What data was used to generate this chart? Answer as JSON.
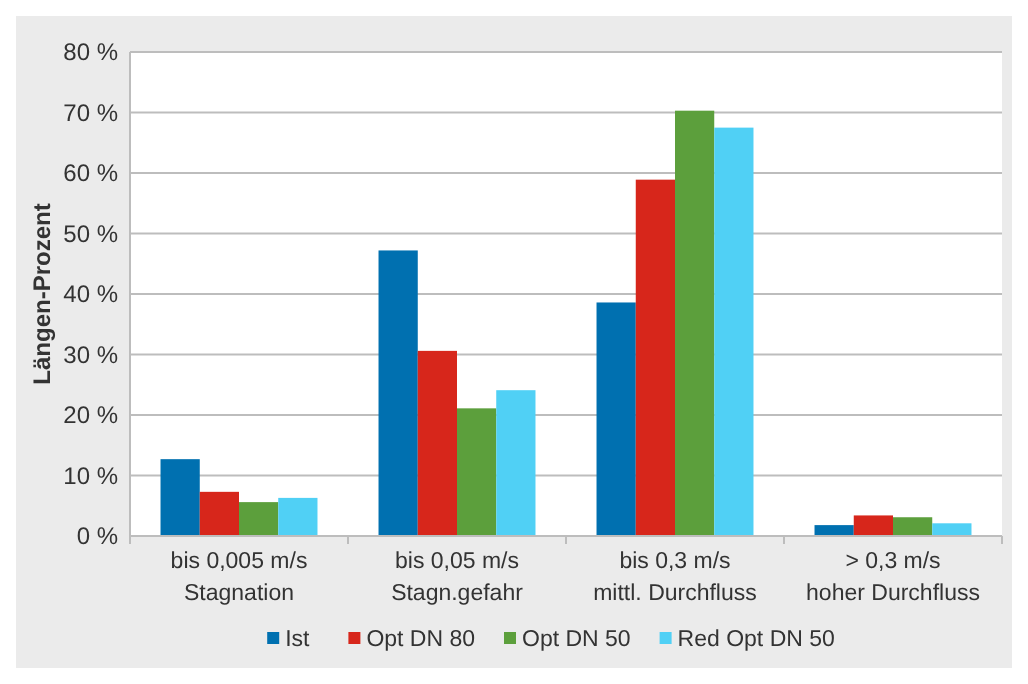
{
  "chart_data": {
    "type": "bar",
    "ylabel": "Längen-Prozent",
    "categories": [
      "bis 0,005 m/s\nStagnation",
      "bis 0,05 m/s\nStagn.gefahr",
      "bis 0,3 m/s\nmittl. Durchfluss",
      "> 0,3 m/s\nhoher Durchfluss"
    ],
    "series": [
      {
        "name": "Ist",
        "color": "#0070b0",
        "values": [
          12.7,
          47.2,
          38.6,
          1.8
        ]
      },
      {
        "name": "Opt DN 80",
        "color": "#d7261b",
        "values": [
          7.3,
          30.6,
          58.9,
          3.4
        ]
      },
      {
        "name": "Opt DN 50",
        "color": "#5c9f3c",
        "values": [
          5.6,
          21.1,
          70.3,
          3.1
        ]
      },
      {
        "name": "Red Opt DN 50",
        "color": "#50d0f5",
        "values": [
          6.3,
          24.1,
          67.5,
          2.1
        ]
      }
    ],
    "ylim": [
      0,
      80
    ],
    "yticks": [
      {
        "value": 0,
        "label": "0 %"
      },
      {
        "value": 10,
        "label": "10 %"
      },
      {
        "value": 20,
        "label": "20 %"
      },
      {
        "value": 30,
        "label": "30 %"
      },
      {
        "value": 40,
        "label": "40 %"
      },
      {
        "value": 50,
        "label": "50 %"
      },
      {
        "value": 60,
        "label": "60 %"
      },
      {
        "value": 70,
        "label": "70 %"
      },
      {
        "value": 80,
        "label": "80 %"
      }
    ],
    "grid": "y",
    "legend": "bottom"
  }
}
